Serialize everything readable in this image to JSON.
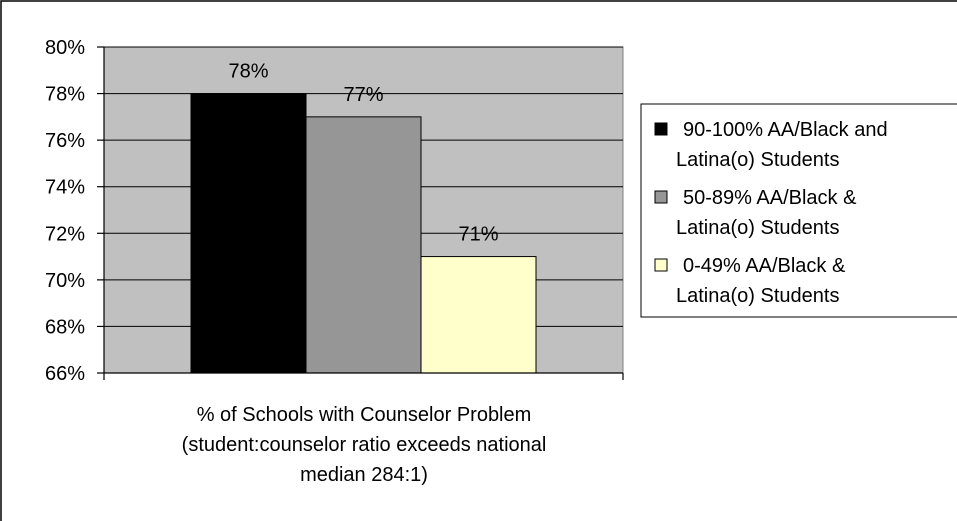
{
  "chart_data": {
    "type": "bar",
    "title": "",
    "xlabel_lines": [
      "% of Schools with Counselor Problem",
      "(student:counselor ratio exceeds national",
      "median 284:1)"
    ],
    "ylabel": "",
    "ylim": [
      66,
      80
    ],
    "yticks": [
      "66%",
      "68%",
      "70%",
      "72%",
      "74%",
      "76%",
      "78%",
      "80%"
    ],
    "ytick_values": [
      66,
      68,
      70,
      72,
      74,
      76,
      78,
      80
    ],
    "grid": true,
    "legend_position": "right",
    "series": [
      {
        "name_lines": [
          "90-100% AA/Black and",
          "Latina(o) Students"
        ],
        "value": 78,
        "label": "78%",
        "color": "#000000"
      },
      {
        "name_lines": [
          "50-89% AA/Black &",
          "Latina(o) Students"
        ],
        "value": 77,
        "label": "77%",
        "color": "#969696"
      },
      {
        "name_lines": [
          "0-49% AA/Black &",
          "Latina(o) Students"
        ],
        "value": 71,
        "label": "71%",
        "color": "#ffffcc"
      }
    ],
    "colors": {
      "plot_background": "#c0c0c0",
      "gridline": "#000000"
    }
  }
}
